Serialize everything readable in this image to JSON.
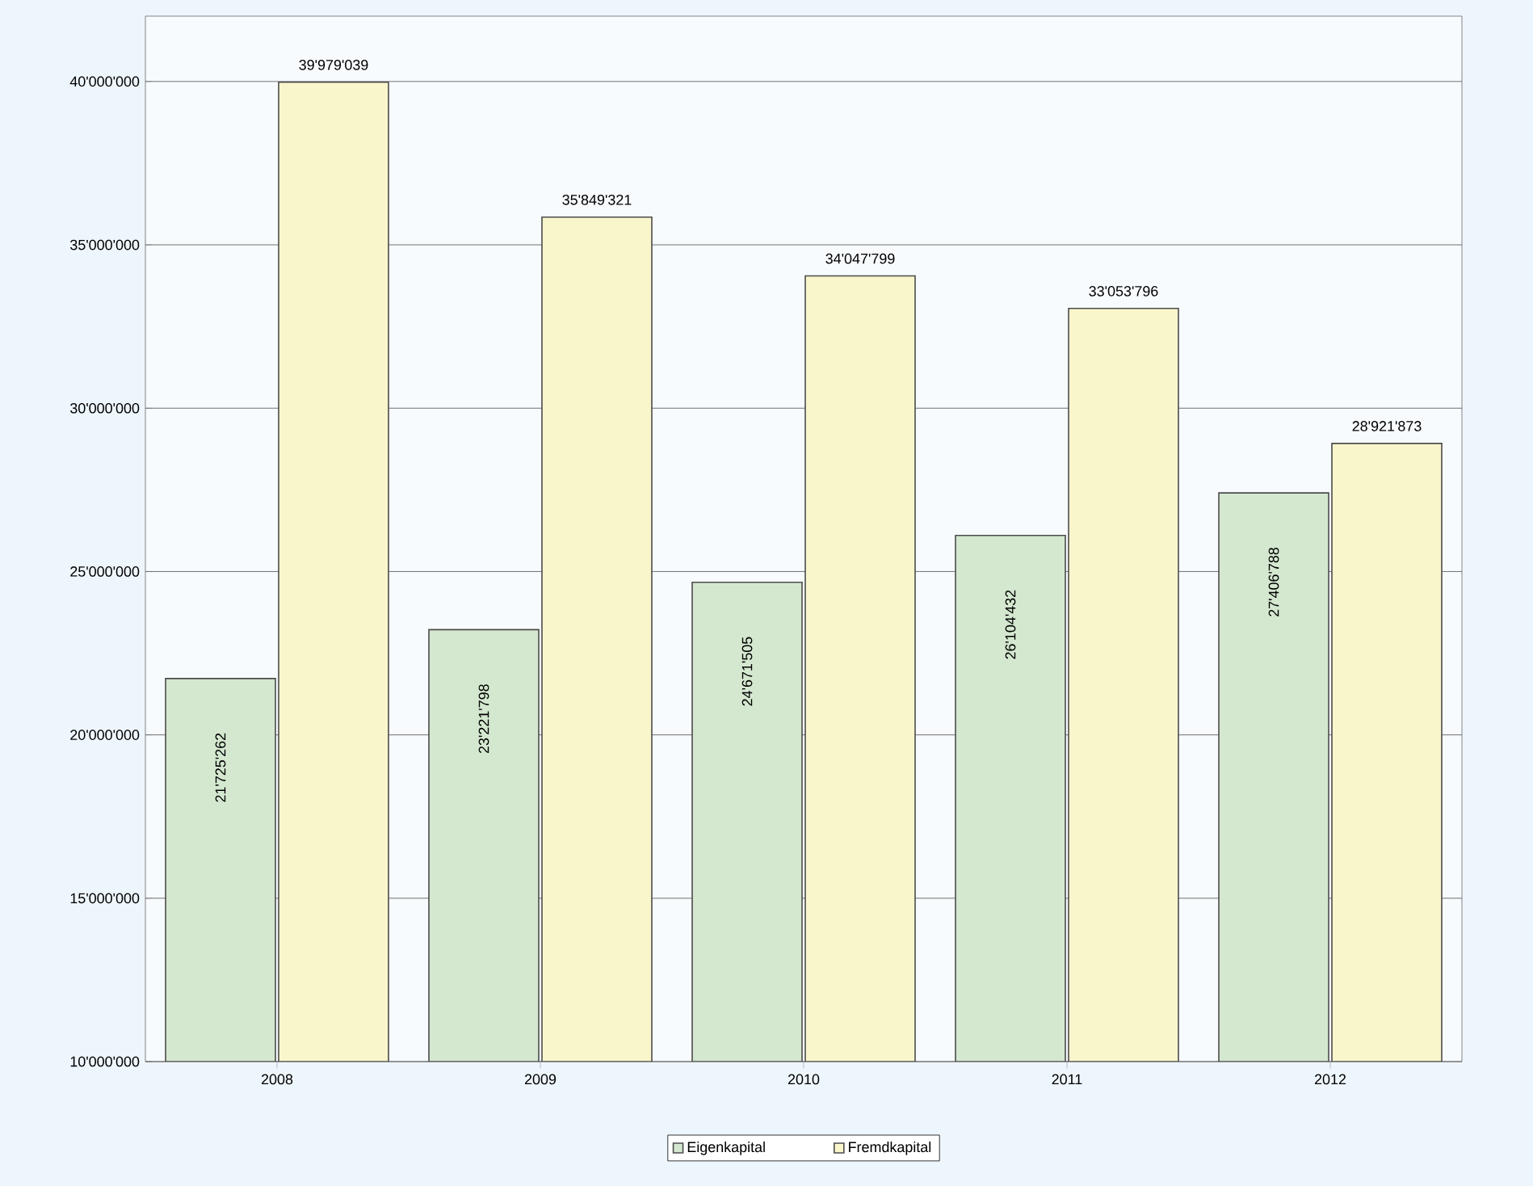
{
  "chart_data": {
    "type": "bar",
    "categories": [
      "2008",
      "2009",
      "2010",
      "2011",
      "2012"
    ],
    "series": [
      {
        "name": "Eigenkapital",
        "color": "#d4e8d0",
        "values": [
          21725262,
          23221798,
          24671505,
          26104432,
          27406788
        ],
        "value_labels": [
          "21'725'262",
          "23'221'798",
          "24'671'505",
          "26'104'432",
          "27'406'788"
        ]
      },
      {
        "name": "Fremdkapital",
        "color": "#faf6cc",
        "values": [
          39979039,
          35849321,
          34047799,
          33053796,
          28921873
        ],
        "value_labels": [
          "39'979'039",
          "35'849'321",
          "34'047'799",
          "33'053'796",
          "28'921'873"
        ]
      }
    ],
    "ylim": [
      10000000,
      42000000
    ],
    "yticks": [
      {
        "value": 10000000,
        "label": "10'000'000"
      },
      {
        "value": 15000000,
        "label": "15'000'000"
      },
      {
        "value": 20000000,
        "label": "20'000'000"
      },
      {
        "value": 25000000,
        "label": "25'000'000"
      },
      {
        "value": 30000000,
        "label": "30'000'000"
      },
      {
        "value": 35000000,
        "label": "35'000'000"
      },
      {
        "value": 40000000,
        "label": "40'000'000"
      }
    ],
    "grid": "y",
    "legend": "bottom"
  }
}
